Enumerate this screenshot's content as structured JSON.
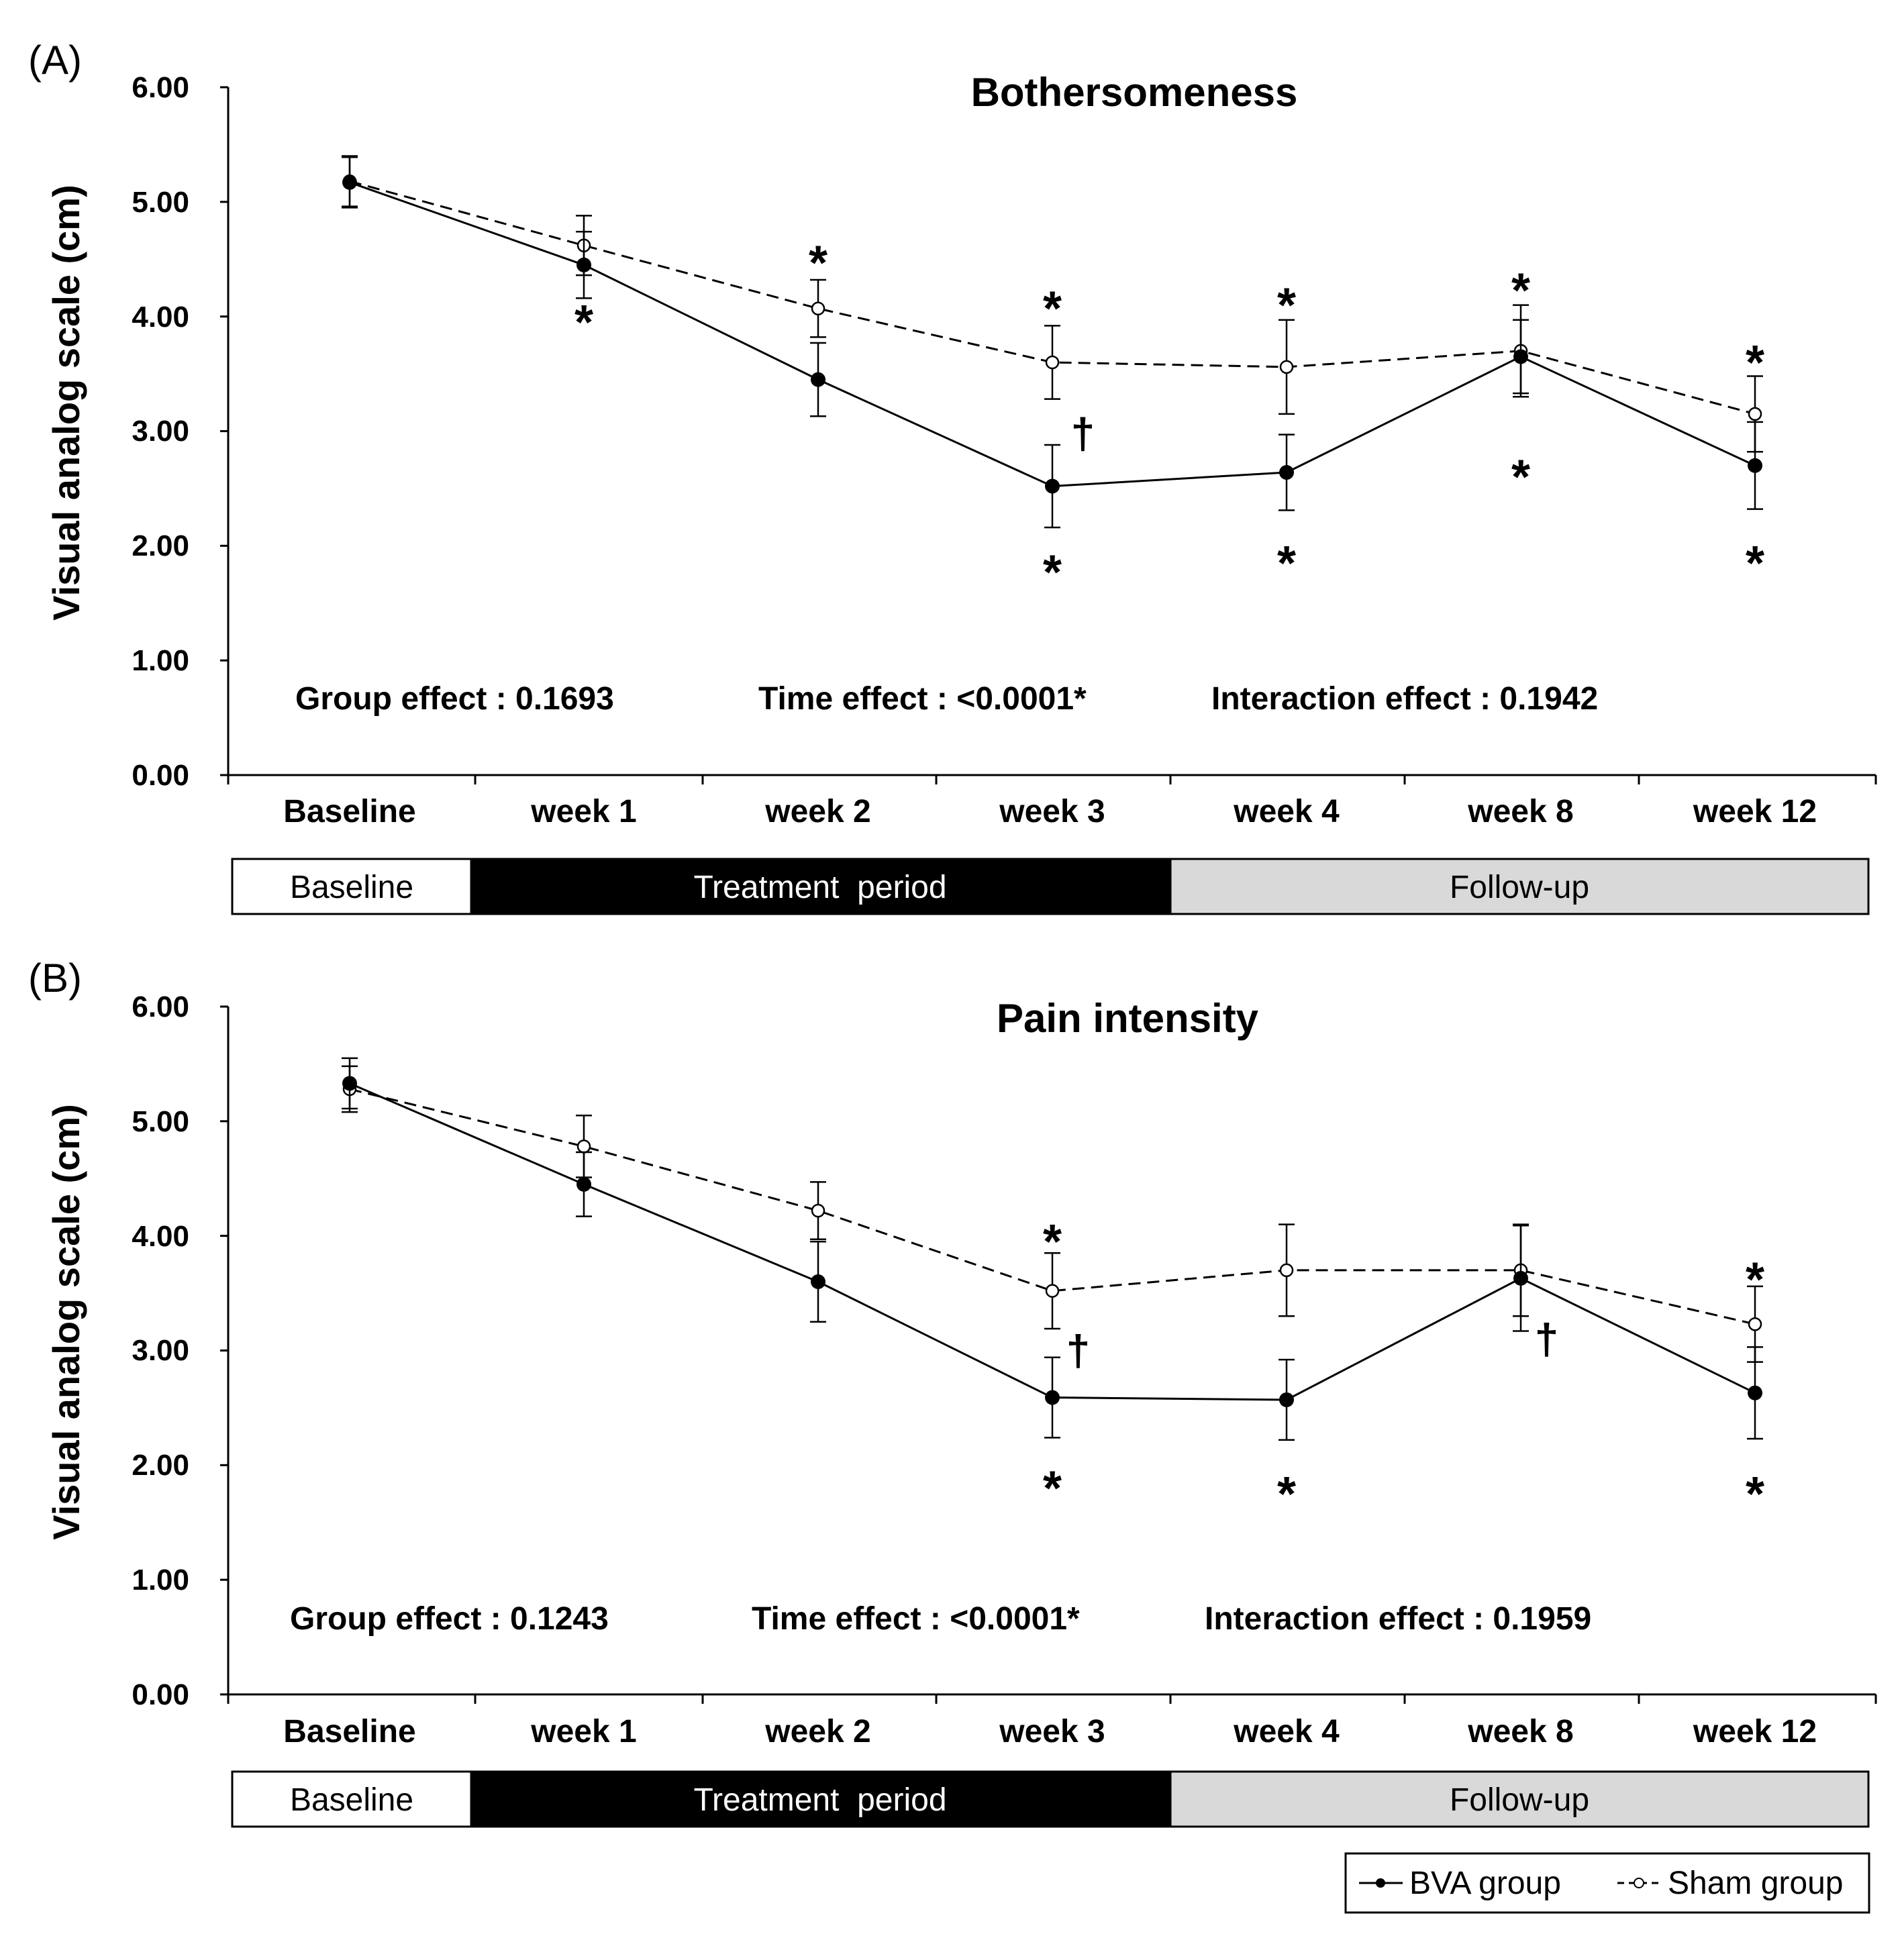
{
  "chart_data": [
    {
      "panel_label": "(A)",
      "type": "line",
      "title": "Bothersomeness",
      "ylabel": "Visual analog scale (cm)",
      "xlabel": "",
      "ylim": [
        0,
        6
      ],
      "yticks": [
        "0.00",
        "1.00",
        "2.00",
        "3.00",
        "4.00",
        "5.00",
        "6.00"
      ],
      "categories": [
        "Baseline",
        "week 1",
        "week 2",
        "week 3",
        "week 4",
        "week 8",
        "week 12"
      ],
      "series": [
        {
          "name": "BVA group",
          "style": "solid-filled",
          "values": [
            5.17,
            4.45,
            3.45,
            2.52,
            2.64,
            3.65,
            2.7
          ],
          "errors": [
            0.22,
            0.29,
            0.32,
            0.36,
            0.33,
            0.32,
            0.38
          ]
        },
        {
          "name": "Sham group",
          "style": "dashed-open",
          "values": [
            5.18,
            4.62,
            4.07,
            3.6,
            3.56,
            3.7,
            3.15
          ],
          "errors": [
            0.22,
            0.26,
            0.25,
            0.32,
            0.41,
            0.4,
            0.33
          ]
        }
      ],
      "sig_stars": [
        {
          "category": 1,
          "value": 3.98
        },
        {
          "category": 2,
          "value": 4.5
        },
        {
          "category": 3,
          "value": 4.1
        },
        {
          "category": 3,
          "value": 1.8
        },
        {
          "category": 4,
          "value": 4.13
        },
        {
          "category": 4,
          "value": 1.88
        },
        {
          "category": 5,
          "value": 4.26
        },
        {
          "category": 5,
          "value": 2.63
        },
        {
          "category": 6,
          "value": 3.63
        },
        {
          "category": 6,
          "value": 1.88
        }
      ],
      "daggers": [
        {
          "category": 3.13,
          "value": 2.98
        }
      ],
      "stats": [
        "Group effect : 0.1693",
        "Time effect : <0.0001*",
        "Interaction effect : 0.1942"
      ],
      "periods": [
        "Baseline",
        "Treatment  period",
        "Follow-up"
      ]
    },
    {
      "panel_label": "(B)",
      "type": "line",
      "title": "Pain intensity",
      "ylabel": "Visual analog scale (cm)",
      "xlabel": "",
      "ylim": [
        0,
        6
      ],
      "yticks": [
        "0.00",
        "1.00",
        "2.00",
        "3.00",
        "4.00",
        "5.00",
        "6.00"
      ],
      "categories": [
        "Baseline",
        "week 1",
        "week 2",
        "week 3",
        "week 4",
        "week 8",
        "week 12"
      ],
      "series": [
        {
          "name": "BVA group",
          "style": "solid-filled",
          "values": [
            5.33,
            4.45,
            3.6,
            2.59,
            2.57,
            3.63,
            2.63
          ],
          "errors": [
            0.22,
            0.28,
            0.35,
            0.35,
            0.35,
            0.46,
            0.4
          ]
        },
        {
          "name": "Sham group",
          "style": "dashed-open",
          "values": [
            5.28,
            4.78,
            4.22,
            3.52,
            3.7,
            3.7,
            3.23
          ],
          "errors": [
            0.2,
            0.27,
            0.25,
            0.33,
            0.4,
            0.4,
            0.33
          ]
        }
      ],
      "sig_stars": [
        {
          "category": 3,
          "value": 3.98
        },
        {
          "category": 3,
          "value": 1.83
        },
        {
          "category": 4,
          "value": 1.78
        },
        {
          "category": 6,
          "value": 3.65
        },
        {
          "category": 6,
          "value": 1.78
        }
      ],
      "daggers": [
        {
          "category": 3.11,
          "value": 3.0
        },
        {
          "category": 5.11,
          "value": 3.1
        }
      ],
      "stats": [
        "Group effect : 0.1243",
        "Time effect : <0.0001*",
        "Interaction effect : 0.1959"
      ],
      "periods": [
        "Baseline",
        "Treatment  period",
        "Follow-up"
      ]
    }
  ],
  "legend": {
    "items": [
      "BVA group",
      "Sham group"
    ],
    "placement": "bottom-right"
  },
  "colors": {
    "line": "#000000",
    "baseline_fill": "#ffffff",
    "treatment_fill": "#000000",
    "followup_fill": "#d9d9d9",
    "baseline_text": "#000000",
    "treatment_text": "#ffffff",
    "followup_text": "#000000"
  },
  "symbols": {
    "star": "*",
    "dagger": "†"
  }
}
